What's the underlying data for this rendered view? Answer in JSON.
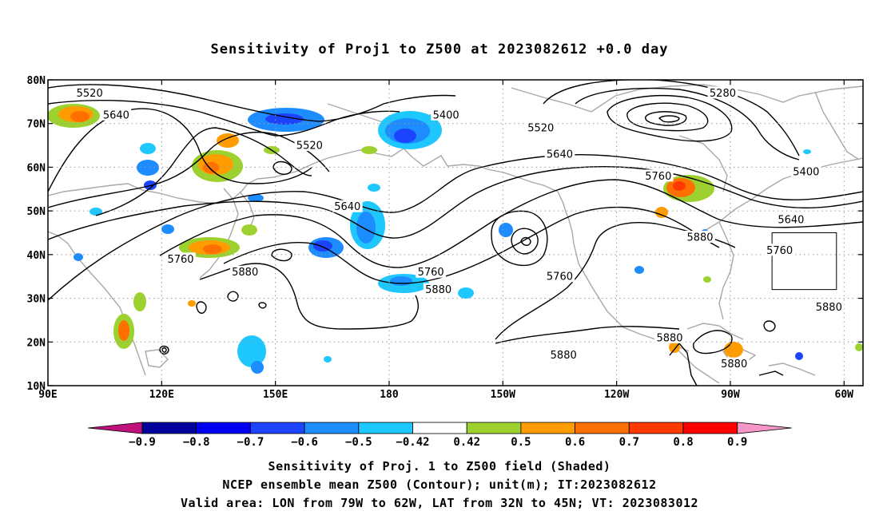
{
  "title": "Sensitivity of Proj1 to Z500 at 2023082612 +0.0 day",
  "map": {
    "lon_range": [
      90,
      305
    ],
    "lat_range": [
      10,
      80
    ],
    "lon_ticks": [
      {
        "lon": 90,
        "label": "90E"
      },
      {
        "lon": 120,
        "label": "120E"
      },
      {
        "lon": 150,
        "label": "150E"
      },
      {
        "lon": 180,
        "label": "180"
      },
      {
        "lon": 210,
        "label": "150W"
      },
      {
        "lon": 240,
        "label": "120W"
      },
      {
        "lon": 270,
        "label": "90W"
      },
      {
        "lon": 300,
        "label": "60W"
      }
    ],
    "lat_ticks": [
      {
        "lat": 80,
        "label": "80N"
      },
      {
        "lat": 70,
        "label": "70N"
      },
      {
        "lat": 60,
        "label": "60N"
      },
      {
        "lat": 50,
        "label": "50N"
      },
      {
        "lat": 40,
        "label": "40N"
      },
      {
        "lat": 30,
        "label": "30N"
      },
      {
        "lat": 20,
        "label": "20N"
      },
      {
        "lat": 10,
        "label": "10N"
      }
    ],
    "valid_area": {
      "lon": [
        281,
        298
      ],
      "lat": [
        32,
        45
      ]
    },
    "contour_labels": [
      {
        "text": "5520",
        "lon": 101,
        "lat": 77
      },
      {
        "text": "5640",
        "lon": 108,
        "lat": 72
      },
      {
        "text": "5400",
        "lon": 195,
        "lat": 72
      },
      {
        "text": "5520",
        "lon": 220,
        "lat": 69
      },
      {
        "text": "5520",
        "lon": 159,
        "lat": 65
      },
      {
        "text": "5280",
        "lon": 268,
        "lat": 77
      },
      {
        "text": "5640",
        "lon": 225,
        "lat": 63
      },
      {
        "text": "5760",
        "lon": 251,
        "lat": 58
      },
      {
        "text": "5400",
        "lon": 290,
        "lat": 59
      },
      {
        "text": "5640",
        "lon": 169,
        "lat": 51
      },
      {
        "text": "5640",
        "lon": 286,
        "lat": 48
      },
      {
        "text": "5880",
        "lon": 262,
        "lat": 44
      },
      {
        "text": "5760",
        "lon": 283,
        "lat": 41
      },
      {
        "text": "5760",
        "lon": 125,
        "lat": 39
      },
      {
        "text": "5880",
        "lon": 142,
        "lat": 36
      },
      {
        "text": "5760",
        "lon": 191,
        "lat": 36
      },
      {
        "text": "5760",
        "lon": 225,
        "lat": 35
      },
      {
        "text": "5880",
        "lon": 193,
        "lat": 32
      },
      {
        "text": "5880",
        "lon": 296,
        "lat": 28
      },
      {
        "text": "5880",
        "lon": 254,
        "lat": 21
      },
      {
        "text": "5880",
        "lon": 226,
        "lat": 17
      },
      {
        "text": "5880",
        "lon": 271,
        "lat": 15
      }
    ]
  },
  "colorbar": {
    "labels": [
      "−0.9",
      "−0.8",
      "−0.7",
      "−0.6",
      "−0.5",
      "−0.42",
      "0.42",
      "0.5",
      "0.6",
      "0.7",
      "0.8",
      "0.9"
    ],
    "low_arrow_color": "#c0107a",
    "high_arrow_color": "#f598c8",
    "colors": [
      "#00009c",
      "#0000f0",
      "#1c44ff",
      "#1c8cff",
      "#1ec8ff",
      "#ffffff",
      "#9cd12f",
      "#ff9d00",
      "#ff7000",
      "#ff3a00",
      "#ff0000"
    ]
  },
  "captions": [
    "Sensitivity of Proj. 1 to Z500 field (Shaded)",
    "NCEP ensemble mean Z500 (Contour); unit(m); IT:2023082612",
    "Valid area: LON from 79W to 62W, LAT from 32N to 45N; VT: 2023083012"
  ]
}
